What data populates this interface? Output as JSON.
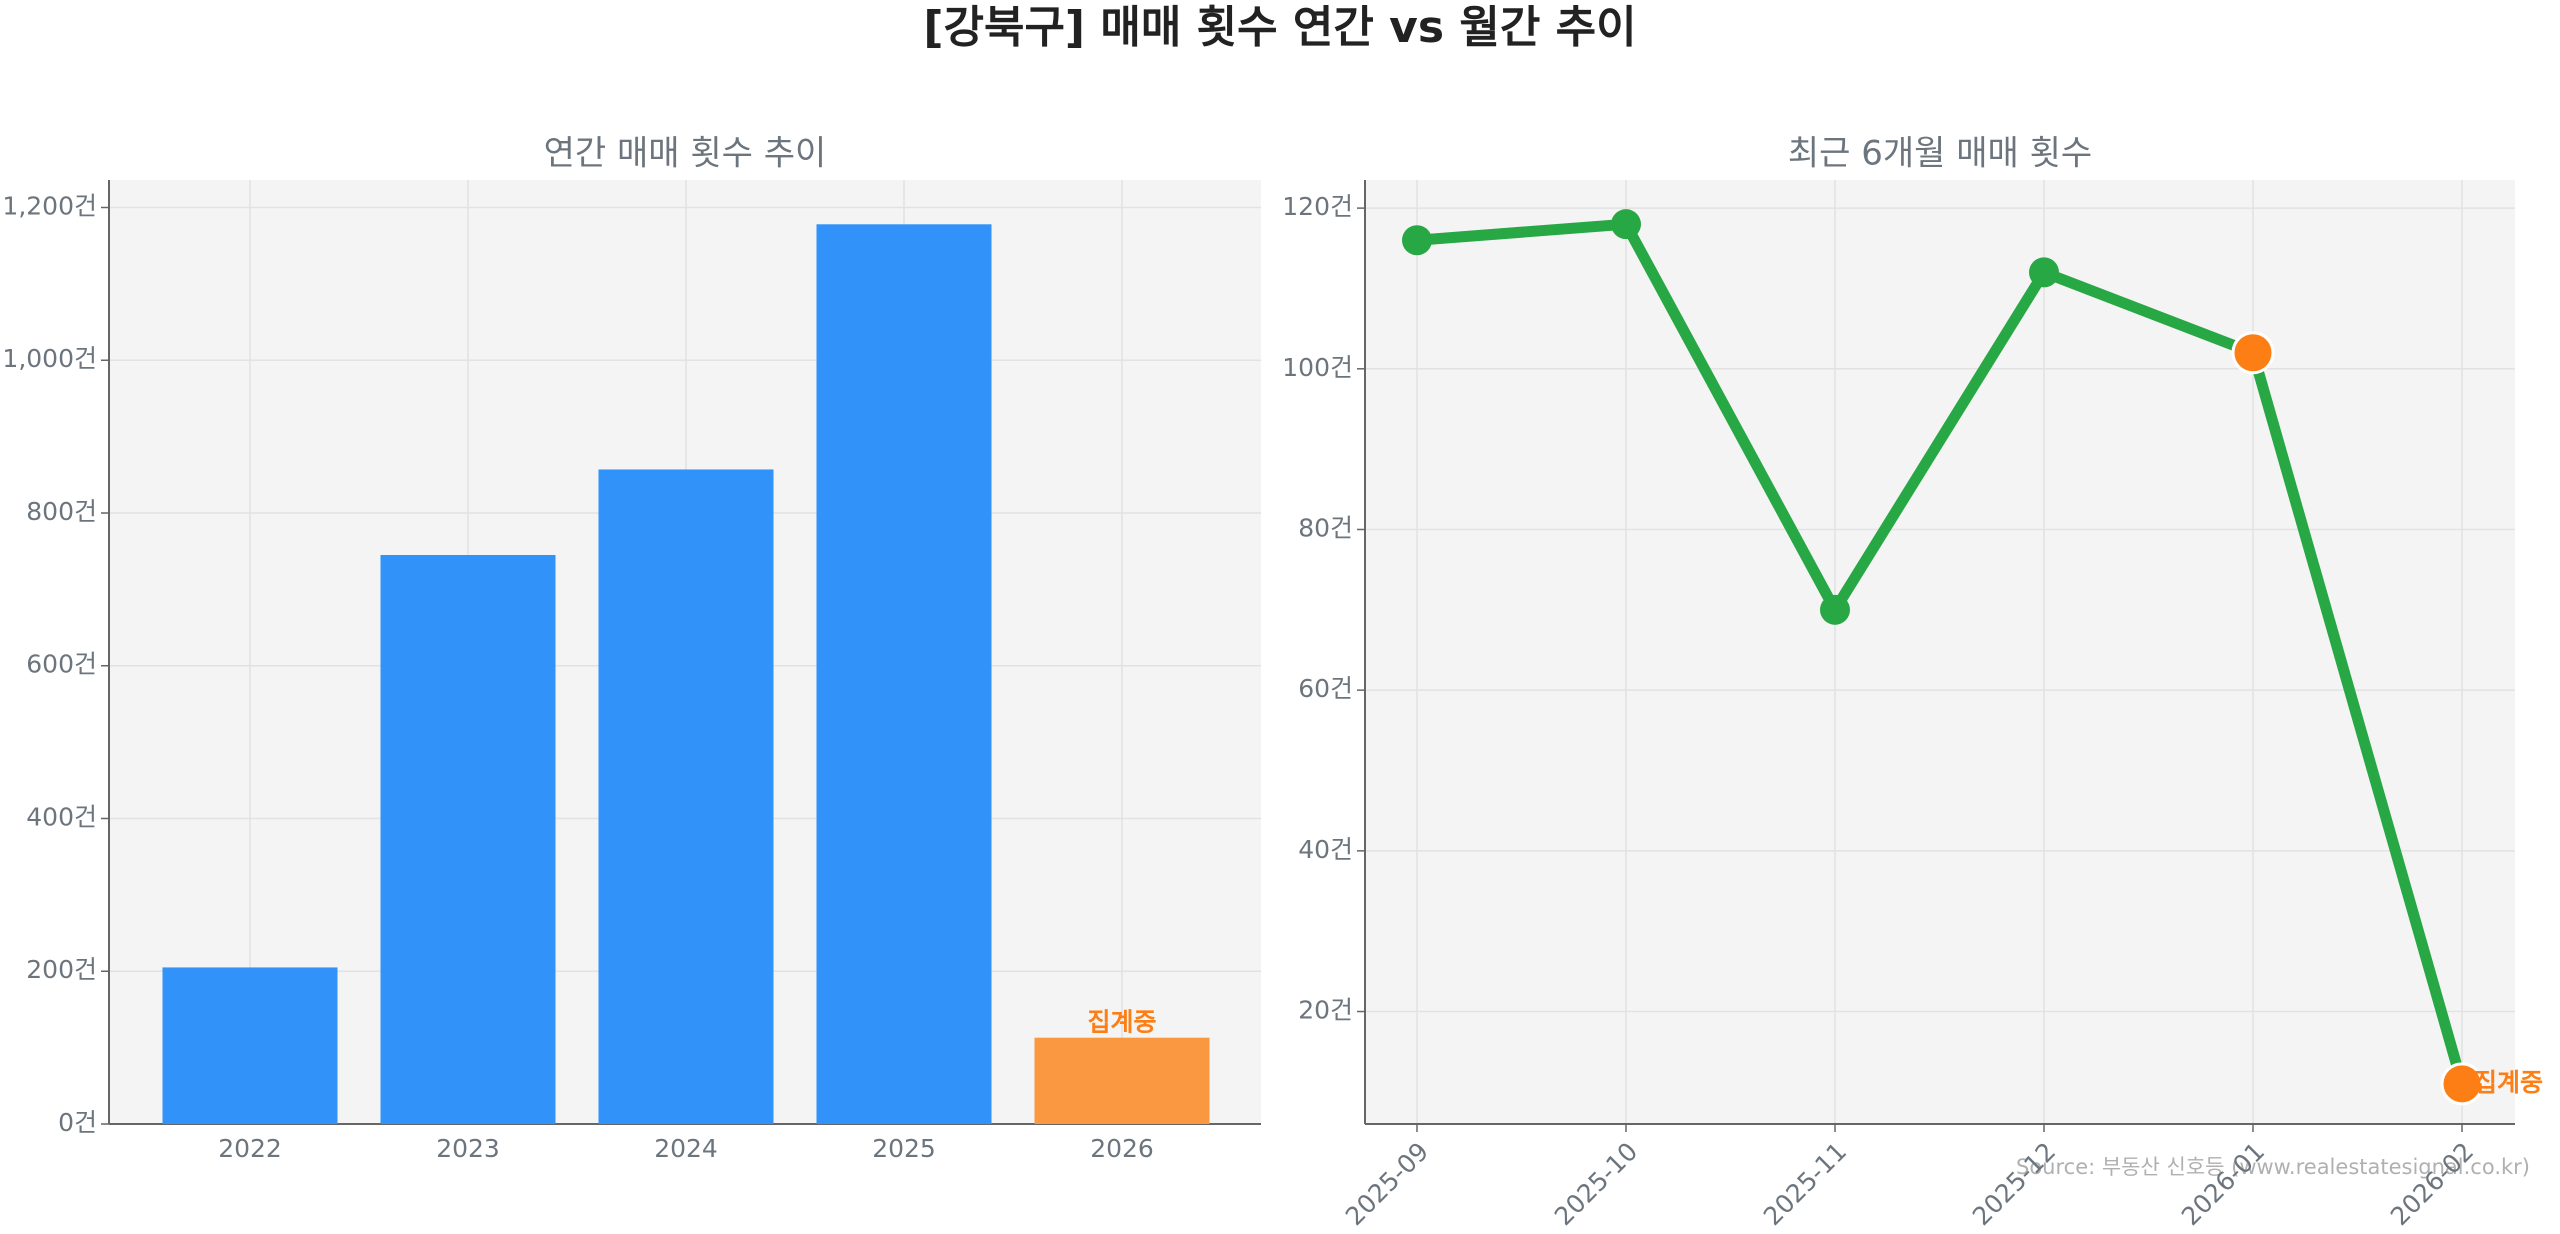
{
  "title": "[강북구] 매매 횟수 연간 vs 월간 추이",
  "source": "Source: 부동산 신호등 (www.realestatesignal.co.kr)",
  "chart_data": [
    {
      "type": "bar",
      "title": "연간 매매 횟수 추이",
      "categories": [
        "2022",
        "2023",
        "2024",
        "2025",
        "2026"
      ],
      "values": [
        205,
        745,
        857,
        1178,
        113
      ],
      "colors": [
        "#3192fa",
        "#3192fa",
        "#3192fa",
        "#3192fa",
        "#f99841"
      ],
      "annotation": "집계중",
      "annotation_color": "#fd7e14",
      "ylim": [
        0,
        1236
      ],
      "yticks": [
        {
          "value": 0,
          "label": "0건"
        },
        {
          "value": 200,
          "label": "200건"
        },
        {
          "value": 400,
          "label": "400건"
        },
        {
          "value": 600,
          "label": "600건"
        },
        {
          "value": 800,
          "label": "800건"
        },
        {
          "value": 1000,
          "label": "1,000건"
        },
        {
          "value": 1200,
          "label": "1,200건"
        }
      ],
      "grid": true
    },
    {
      "type": "line",
      "title": "최근 6개월 매매 횟수",
      "categories": [
        "2025-09",
        "2025-10",
        "2025-11",
        "2025-12",
        "2026-01",
        "2026-02"
      ],
      "values": [
        116,
        118,
        70,
        112,
        102,
        11
      ],
      "color": "#28a745",
      "marker_colors": [
        "#28a745",
        "#28a745",
        "#28a745",
        "#28a745",
        "#fd7e14",
        "#fd7e14"
      ],
      "annotation": "집계중",
      "annotation_color": "#fd7e14",
      "ylim": [
        6,
        123.5
      ],
      "yticks": [
        {
          "value": 20,
          "label": "20건"
        },
        {
          "value": 40,
          "label": "40건"
        },
        {
          "value": 60,
          "label": "60건"
        },
        {
          "value": 80,
          "label": "80건"
        },
        {
          "value": 100,
          "label": "100건"
        },
        {
          "value": 120,
          "label": "120건"
        }
      ],
      "grid": true
    }
  ]
}
